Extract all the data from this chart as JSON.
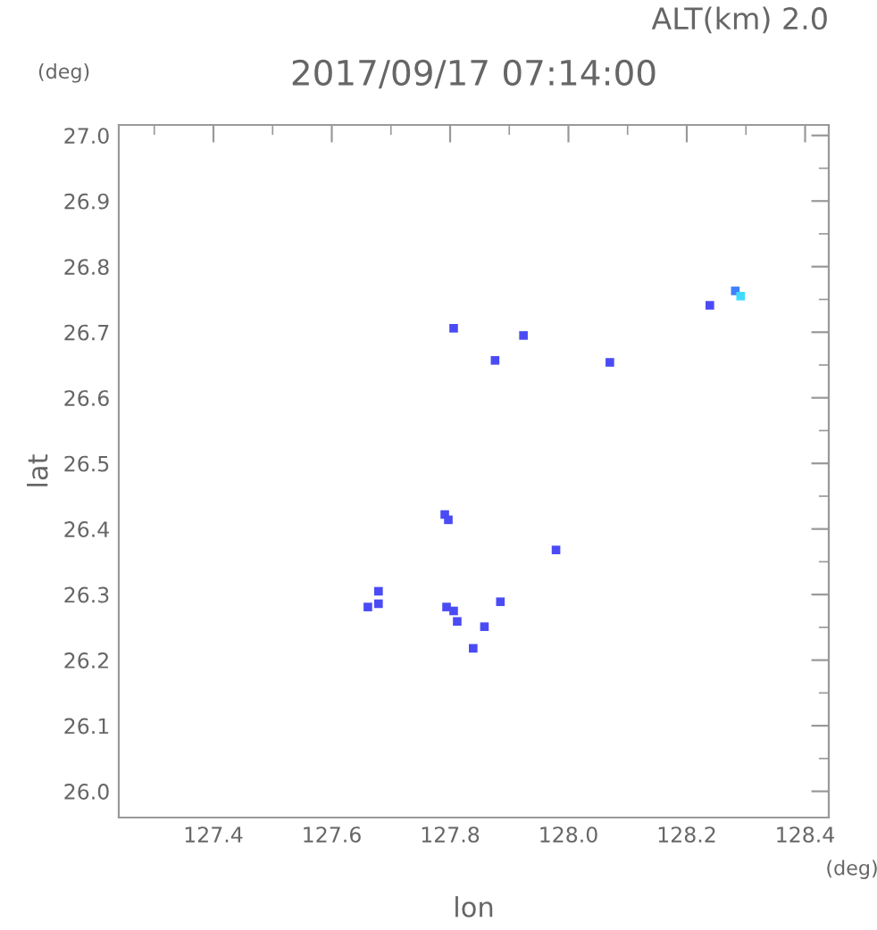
{
  "chart_data": {
    "type": "scatter",
    "title": "2017/09/17 07:14:00",
    "xlabel": "lon",
    "ylabel": "lat",
    "annotations": [
      "ALT(km) 2.0",
      "(deg)",
      "(deg)"
    ],
    "marker": "square",
    "series": [
      {
        "x": [
          127.806,
          127.924,
          127.876,
          128.07,
          128.239,
          128.282,
          128.291,
          127.791,
          127.797,
          127.979,
          127.679,
          127.679,
          127.661,
          127.794,
          127.806,
          127.812,
          127.858,
          127.885,
          127.839
        ],
        "values": [
          26.706,
          26.695,
          26.657,
          26.654,
          26.741,
          26.763,
          26.755,
          26.422,
          26.414,
          26.368,
          26.305,
          26.286,
          26.281,
          26.281,
          26.275,
          26.259,
          26.251,
          26.289,
          26.218
        ],
        "colors": [
          "#4b4bf5",
          "#4b4bf5",
          "#4b4bf5",
          "#4b4bf5",
          "#4b4bf5",
          "#3f80ff",
          "#40dcff",
          "#4b4bf5",
          "#4b4bf5",
          "#4b4bf5",
          "#4b4bf5",
          "#4b4bf5",
          "#4b4bf5",
          "#4b4bf5",
          "#4b4bf5",
          "#4b4bf5",
          "#4b4bf5",
          "#4b4bf5",
          "#4b4bf5"
        ]
      }
    ],
    "xlim": [
      127.24,
      128.44
    ],
    "ylim": [
      25.96,
      27.016
    ],
    "xticks": [
      127.4,
      127.6,
      127.8,
      {
        "value": 128,
        "label": "128.0"
      },
      128.2,
      128.4
    ],
    "yticks": [
      {
        "value": 26,
        "label": "26.0"
      },
      26.1,
      26.2,
      26.3,
      26.4,
      26.5,
      26.6,
      26.7,
      26.8,
      26.9,
      {
        "value": 27,
        "label": "27.0"
      }
    ],
    "grid": false,
    "legend": false
  }
}
